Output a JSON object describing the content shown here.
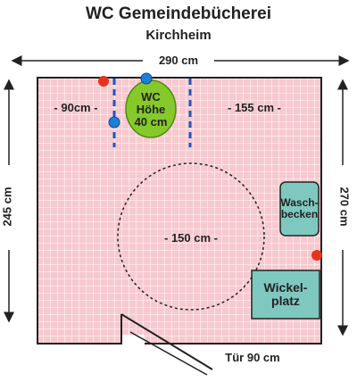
{
  "header": {
    "title": "WC Gemeindebücherei",
    "subtitle": "Kirchheim"
  },
  "dimensions": {
    "width_top": "290 cm",
    "height_left": "245 cm",
    "height_right": "270 cm",
    "left_zone": "- 90cm -",
    "right_zone": "- 155 cm -",
    "turning_circle": "- 150 cm -",
    "door": "Tür 90 cm"
  },
  "fixtures": {
    "wc_line1": "WC",
    "wc_line2": "Höhe",
    "wc_line3": "40 cm",
    "sink_line1": "Wasch-",
    "sink_line2": "becken",
    "changing_line1": "Wickel-",
    "changing_line2": "platz"
  },
  "colors": {
    "floor": "#f7c9cf",
    "grid": "#ffffff",
    "wall": "#222222",
    "wc": "#86c92a",
    "sink": "#7fc8c0",
    "changing_table": "#7fc8c0",
    "grab_bar": "#1a56c8",
    "alarm_dot": "#e8331c",
    "dot_blue": "#1e7fd6"
  }
}
